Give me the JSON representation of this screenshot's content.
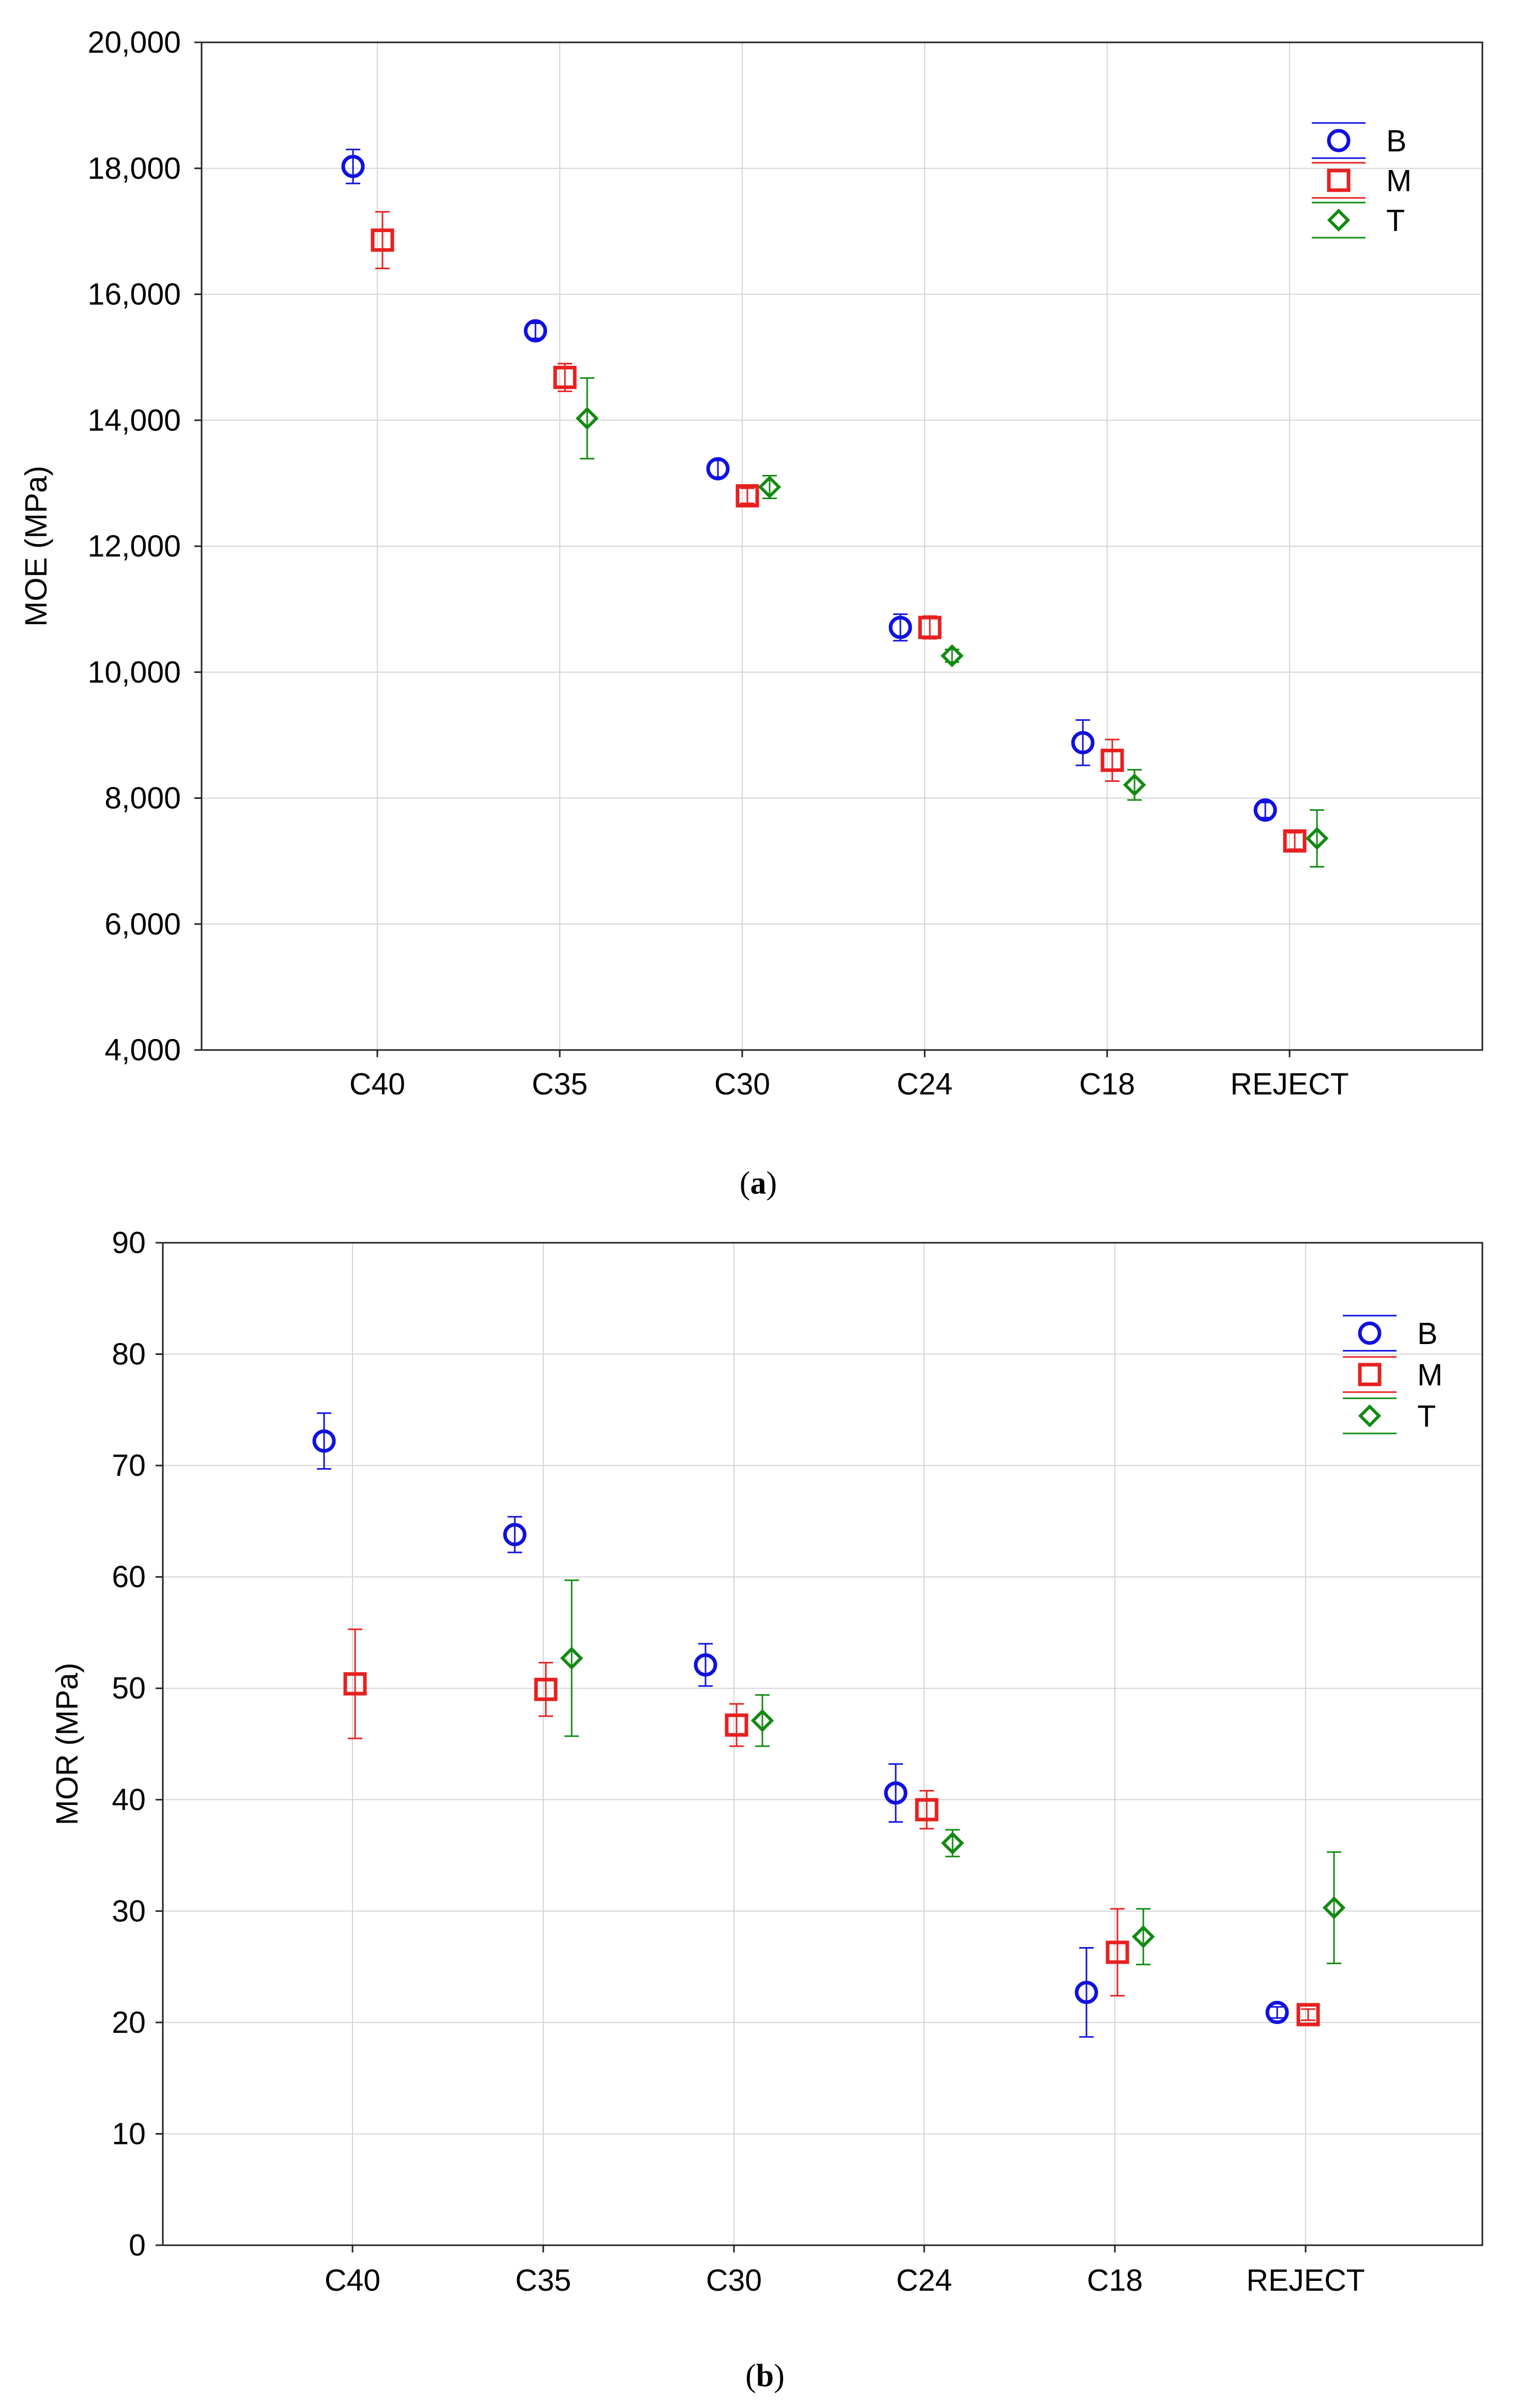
{
  "chart_data": [
    {
      "id": "a",
      "type": "scatter",
      "caption": {
        "open": "(",
        "letter": "a",
        "close": ")"
      },
      "ylabel": "MOE (MPa)",
      "xlabel": "",
      "ylim": [
        4000,
        20000
      ],
      "yticks": [
        4000,
        6000,
        8000,
        10000,
        12000,
        14000,
        16000,
        18000,
        20000
      ],
      "ytick_labels": [
        "4,000",
        "6,000",
        "8,000",
        "10,000",
        "12,000",
        "14,000",
        "16,000",
        "18,000",
        "20,000"
      ],
      "categories": [
        "C40",
        "C35",
        "C30",
        "C24",
        "C18",
        "REJECT"
      ],
      "grid": true,
      "legend_position": "top-right",
      "series": [
        {
          "name": "B",
          "marker": "circle",
          "color": "#1010e0",
          "values": [
            18030,
            15420,
            13230,
            10710,
            8880,
            7810
          ],
          "errors": [
            270,
            120,
            130,
            210,
            360,
            120
          ]
        },
        {
          "name": "M",
          "marker": "square",
          "color": "#e82020",
          "values": [
            16860,
            14680,
            12800,
            10710,
            8600,
            7320
          ],
          "errors": [
            450,
            220,
            120,
            180,
            330,
            130
          ]
        },
        {
          "name": "T",
          "marker": "diamond",
          "color": "#128a12",
          "values": [
            null,
            14030,
            12940,
            10260,
            8210,
            7360
          ],
          "errors": [
            null,
            640,
            180,
            100,
            240,
            450
          ]
        }
      ]
    },
    {
      "id": "b",
      "type": "scatter",
      "caption": {
        "open": "(",
        "letter": "b",
        "close": ")"
      },
      "ylabel": "MOR (MPa)",
      "xlabel": "",
      "ylim": [
        0,
        90
      ],
      "yticks": [
        0,
        10,
        20,
        30,
        40,
        50,
        60,
        70,
        80,
        90
      ],
      "ytick_labels": [
        "0",
        "10",
        "20",
        "30",
        "40",
        "50",
        "60",
        "70",
        "80",
        "90"
      ],
      "categories": [
        "C40",
        "C35",
        "C30",
        "C24",
        "C18",
        "REJECT"
      ],
      "grid": true,
      "legend_position": "top-right",
      "series": [
        {
          "name": "B",
          "marker": "circle",
          "color": "#1010e0",
          "values": [
            72.2,
            63.8,
            52.1,
            40.6,
            22.7,
            20.9
          ],
          "errors": [
            2.5,
            1.6,
            1.9,
            2.6,
            4.0,
            0.5
          ]
        },
        {
          "name": "M",
          "marker": "square",
          "color": "#e82020",
          "values": [
            50.4,
            49.9,
            46.7,
            39.1,
            26.3,
            20.7
          ],
          "errors": [
            4.9,
            2.4,
            1.9,
            1.7,
            3.9,
            0.5
          ]
        },
        {
          "name": "T",
          "marker": "diamond",
          "color": "#128a12",
          "values": [
            null,
            52.7,
            47.1,
            36.1,
            27.7,
            30.3
          ],
          "errors": [
            null,
            7.0,
            2.3,
            1.2,
            2.5,
            5.0
          ]
        }
      ]
    }
  ]
}
